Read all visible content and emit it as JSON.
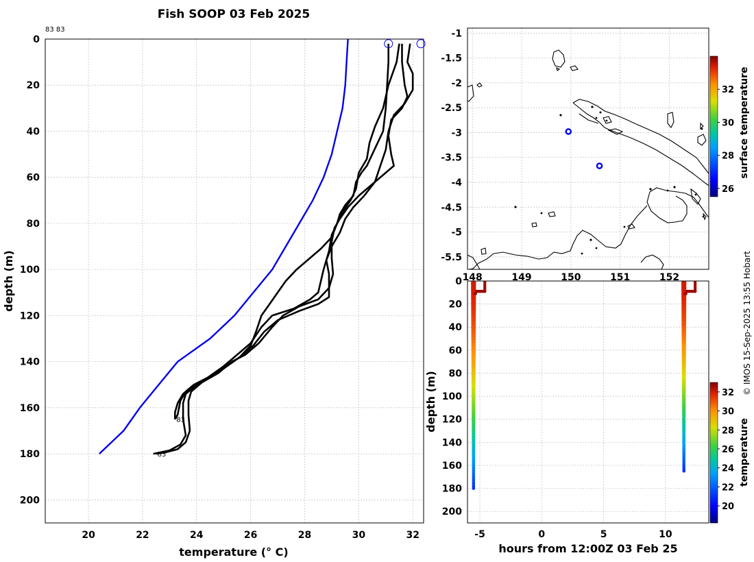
{
  "figure": {
    "title": "Fish SOOP 03 Feb 2025",
    "credit": "© IMOS 15-Sep-2025 13:55 Hobart",
    "profile_ids_label": "83 83"
  },
  "chart_data": [
    {
      "id": "profile-panel",
      "type": "line",
      "xlabel": "temperature (° C)",
      "ylabel": "depth (m)",
      "xlim": [
        18.4,
        32.4
      ],
      "ylim": [
        210,
        0
      ],
      "xticks": [
        20,
        22,
        24,
        26,
        28,
        30,
        32
      ],
      "yticks": [
        0,
        20,
        40,
        60,
        80,
        100,
        120,
        140,
        160,
        180,
        200
      ],
      "grid": true,
      "surface_markers": [
        {
          "x": 31.1,
          "y": 2
        },
        {
          "x": 32.3,
          "y": 2
        }
      ],
      "series": [
        {
          "color": "#0000ee",
          "points": [
            [
              29.6,
              0
            ],
            [
              29.55,
              10
            ],
            [
              29.5,
              20
            ],
            [
              29.4,
              30
            ],
            [
              29.2,
              40
            ],
            [
              29.0,
              50
            ],
            [
              28.7,
              60
            ],
            [
              28.3,
              70
            ],
            [
              27.8,
              80
            ],
            [
              27.3,
              90
            ],
            [
              26.8,
              100
            ],
            [
              26.1,
              110
            ],
            [
              25.4,
              120
            ],
            [
              24.5,
              130
            ],
            [
              23.3,
              140
            ],
            [
              22.6,
              150
            ],
            [
              21.9,
              160
            ],
            [
              21.3,
              170
            ],
            [
              20.4,
              180
            ]
          ]
        },
        {
          "color": "#000000",
          "end_label": "83",
          "points": [
            [
              31.1,
              2
            ],
            [
              31.1,
              10
            ],
            [
              31.05,
              20
            ],
            [
              31.0,
              30
            ],
            [
              30.9,
              40
            ],
            [
              30.7,
              45
            ],
            [
              30.5,
              50
            ],
            [
              30.3,
              55
            ],
            [
              30.1,
              58
            ],
            [
              29.9,
              62
            ],
            [
              29.8,
              68
            ],
            [
              29.5,
              72
            ],
            [
              29.3,
              76
            ],
            [
              29.2,
              80
            ],
            [
              29.0,
              85
            ],
            [
              28.9,
              92
            ],
            [
              28.7,
              100
            ],
            [
              28.5,
              110
            ],
            [
              28.2,
              113
            ],
            [
              27.6,
              117
            ],
            [
              26.8,
              120
            ],
            [
              26.4,
              125
            ],
            [
              26.0,
              132
            ],
            [
              25.5,
              137
            ],
            [
              25.0,
              142
            ],
            [
              24.4,
              147
            ],
            [
              23.9,
              150
            ],
            [
              23.6,
              153
            ],
            [
              23.4,
              157
            ],
            [
              23.35,
              160
            ],
            [
              23.3,
              163
            ],
            [
              23.2,
              165
            ]
          ]
        },
        {
          "color": "#000000",
          "points": [
            [
              31.5,
              2
            ],
            [
              31.4,
              10
            ],
            [
              31.1,
              20
            ],
            [
              30.9,
              30
            ],
            [
              30.6,
              38
            ],
            [
              30.4,
              45
            ],
            [
              30.3,
              52
            ],
            [
              30.0,
              58
            ],
            [
              29.9,
              65
            ],
            [
              29.7,
              70
            ],
            [
              29.4,
              75
            ],
            [
              29.2,
              80
            ],
            [
              29.0,
              86
            ],
            [
              28.6,
              91
            ],
            [
              28.1,
              96
            ],
            [
              27.7,
              100
            ],
            [
              27.3,
              105
            ],
            [
              27.0,
              110
            ],
            [
              26.7,
              115
            ],
            [
              26.4,
              120
            ],
            [
              26.2,
              127
            ],
            [
              26.0,
              133
            ],
            [
              25.6,
              138
            ],
            [
              25.0,
              143
            ],
            [
              24.4,
              147
            ],
            [
              23.8,
              151
            ],
            [
              23.5,
              154
            ],
            [
              23.3,
              158
            ],
            [
              23.2,
              162
            ],
            [
              23.2,
              165
            ]
          ]
        },
        {
          "color": "#000000",
          "end_label": "83",
          "points": [
            [
              31.6,
              2
            ],
            [
              31.6,
              10
            ],
            [
              31.7,
              20
            ],
            [
              31.8,
              25
            ],
            [
              31.6,
              30
            ],
            [
              31.2,
              35
            ],
            [
              31.1,
              42
            ],
            [
              31.2,
              50
            ],
            [
              31.3,
              55
            ],
            [
              31.0,
              58
            ],
            [
              30.5,
              63
            ],
            [
              30.0,
              68
            ],
            [
              29.6,
              73
            ],
            [
              29.3,
              78
            ],
            [
              29.1,
              82
            ],
            [
              29.0,
              88
            ],
            [
              29.0,
              95
            ],
            [
              29.05,
              102
            ],
            [
              28.9,
              108
            ],
            [
              28.5,
              113
            ],
            [
              27.8,
              116
            ],
            [
              27.2,
              120
            ],
            [
              26.8,
              125
            ],
            [
              26.3,
              132
            ],
            [
              25.8,
              137
            ],
            [
              25.3,
              140
            ],
            [
              24.8,
              145
            ],
            [
              24.2,
              149
            ],
            [
              23.8,
              153
            ],
            [
              23.7,
              157
            ],
            [
              23.7,
              163
            ],
            [
              23.75,
              170
            ],
            [
              23.6,
              175
            ],
            [
              23.3,
              178
            ],
            [
              22.8,
              179.5
            ],
            [
              22.5,
              180
            ]
          ]
        },
        {
          "color": "#000000",
          "points": [
            [
              31.9,
              2
            ],
            [
              31.8,
              10
            ],
            [
              32.0,
              15
            ],
            [
              32.0,
              22
            ],
            [
              31.7,
              28
            ],
            [
              31.3,
              33
            ],
            [
              31.1,
              40
            ],
            [
              31.0,
              48
            ],
            [
              30.8,
              55
            ],
            [
              30.6,
              62
            ],
            [
              30.2,
              68
            ],
            [
              29.8,
              73
            ],
            [
              29.5,
              78
            ],
            [
              29.3,
              84
            ],
            [
              29.0,
              90
            ],
            [
              28.8,
              96
            ],
            [
              28.9,
              102
            ],
            [
              28.9,
              112
            ],
            [
              28.5,
              115
            ],
            [
              27.8,
              118
            ],
            [
              27.0,
              122
            ],
            [
              26.5,
              127
            ],
            [
              26.1,
              133
            ],
            [
              25.6,
              138
            ],
            [
              25.1,
              142
            ],
            [
              24.6,
              146
            ],
            [
              24.0,
              150
            ],
            [
              23.6,
              154
            ],
            [
              23.5,
              158
            ],
            [
              23.5,
              165
            ],
            [
              23.6,
              172
            ],
            [
              23.4,
              176
            ],
            [
              23.0,
              178.5
            ],
            [
              22.6,
              179.5
            ],
            [
              22.4,
              180
            ]
          ]
        }
      ]
    },
    {
      "id": "map-panel",
      "type": "scatter",
      "xlabel": "",
      "ylabel": "",
      "xlim": [
        147.9,
        152.8
      ],
      "ylim": [
        -5.75,
        -0.9
      ],
      "xticks": [
        148,
        149,
        150,
        151,
        152
      ],
      "yticks": [
        -1,
        -1.5,
        -2,
        -2.5,
        -3,
        -3.5,
        -4,
        -4.5,
        -5,
        -5.5
      ],
      "grid": true,
      "stations": [
        {
          "lon": 149.95,
          "lat": -2.98
        },
        {
          "lon": 150.58,
          "lat": -3.67
        }
      ],
      "colorbar": {
        "label": "surface temperature",
        "ticks": [
          26,
          28,
          30,
          32
        ],
        "range": [
          25.5,
          34
        ]
      }
    },
    {
      "id": "time-depth-panel",
      "type": "scatter",
      "xlabel": "hours from 12:00Z 03 Feb 25",
      "ylabel": "depth (m)",
      "xlim": [
        -6,
        13.5
      ],
      "ylim": [
        210,
        0
      ],
      "xticks": [
        -5,
        0,
        5,
        10
      ],
      "yticks": [
        0,
        20,
        40,
        60,
        80,
        100,
        120,
        140,
        160,
        180,
        200
      ],
      "casts": [
        {
          "hours": [
            -5.6,
            -5.1
          ],
          "max_depth": 180,
          "step_at": 9
        },
        {
          "hours": [
            11.4,
            11.9
          ],
          "max_depth": 165,
          "step_at": 9
        }
      ],
      "colorbar": {
        "label": "temperature",
        "ticks": [
          20,
          22,
          24,
          26,
          28,
          30,
          32
        ],
        "range": [
          18.2,
          33
        ]
      }
    }
  ]
}
